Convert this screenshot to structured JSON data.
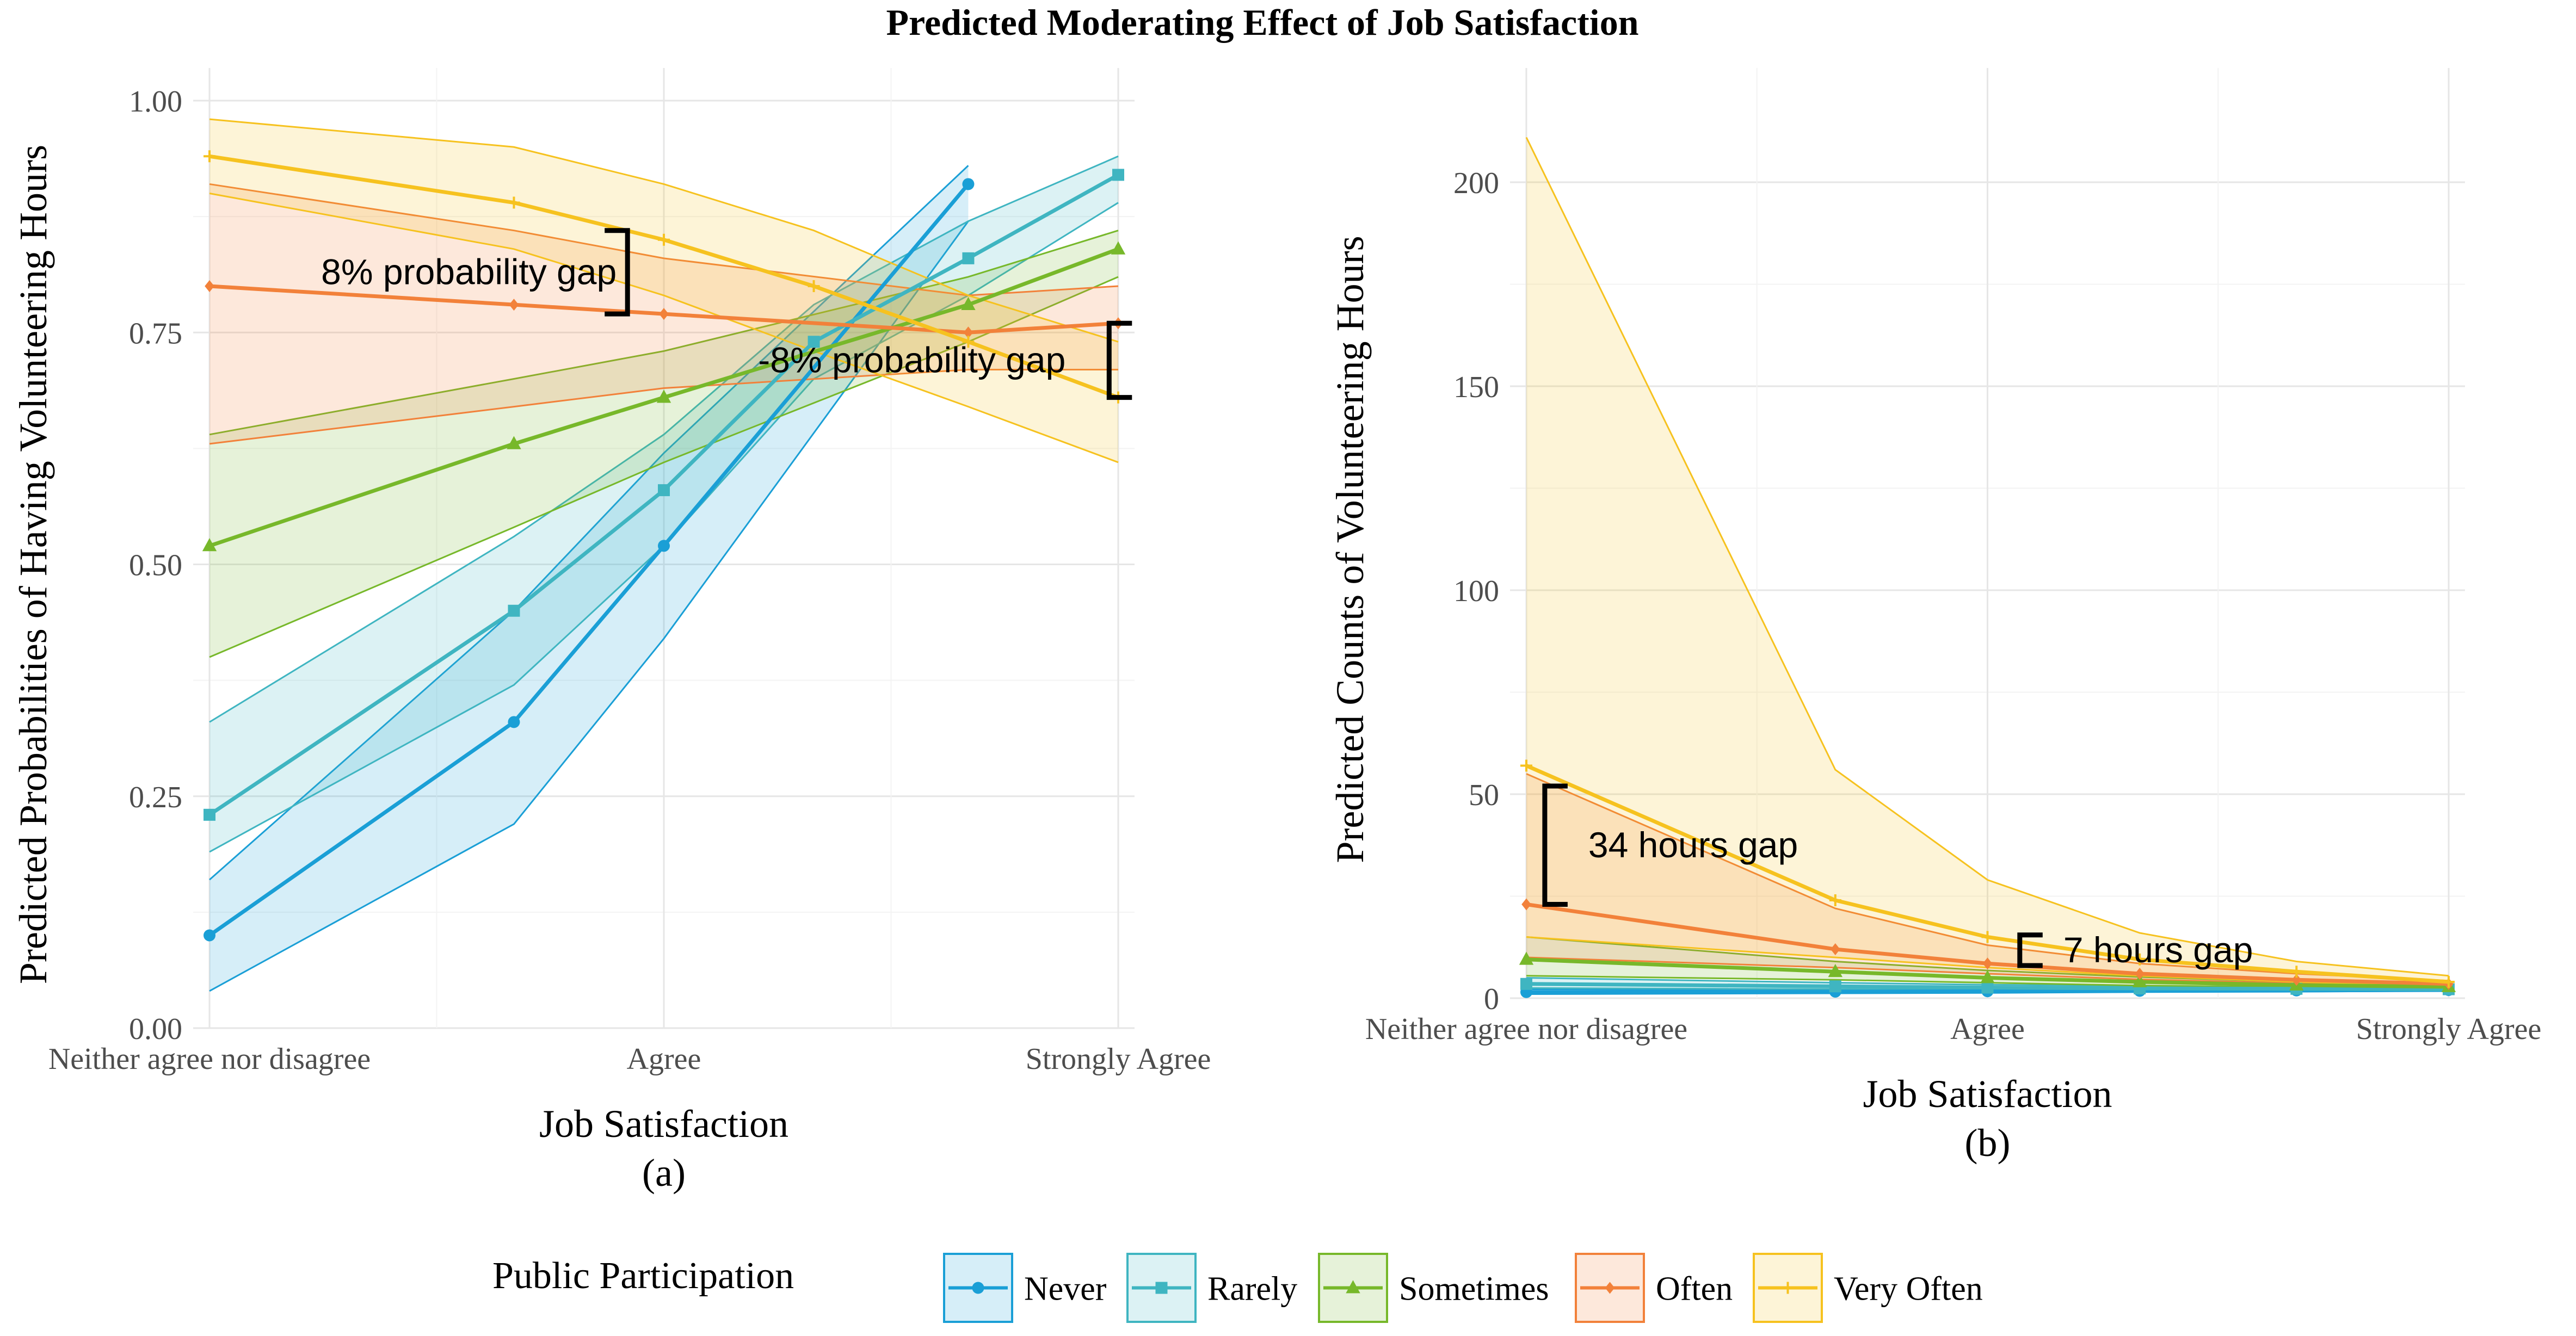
{
  "figure": {
    "title": "Predicted Moderating Effect of Job Satisfaction",
    "legend_title": "Public Participation"
  },
  "colors": {
    "Never": "#1a9fd6",
    "Rarely": "#3fb5c1",
    "Sometimes": "#77b82a",
    "Often": "#f2813a",
    "Very Often": "#f6c21f"
  },
  "chart_data": [
    {
      "type": "line",
      "panel_label": "(a)",
      "xlabel": "Job Satisfaction",
      "ylabel": "Predicted Probabilities of Having Volunteering Hours",
      "x_ticks": [
        "Neither agree nor disagree",
        "Agree",
        "Strongly Agree"
      ],
      "x_tick_positions": [
        3,
        4,
        5
      ],
      "xlim": [
        3,
        5
      ],
      "ylim": [
        0,
        1
      ],
      "y_ticks": [
        "0.00",
        "0.25",
        "0.50",
        "0.75",
        "1.00"
      ],
      "grid": true,
      "legend": "bottom",
      "series": [
        {
          "name": "Never",
          "marker": "circle",
          "points": [
            [
              3,
              0.1
            ],
            [
              3.67,
              0.33
            ],
            [
              4,
              0.52
            ],
            [
              4.67,
              0.91
            ]
          ],
          "lower": [
            [
              3,
              0.04
            ],
            [
              3.67,
              0.22
            ],
            [
              4,
              0.42
            ],
            [
              4.67,
              0.87
            ]
          ],
          "upper": [
            [
              3,
              0.16
            ],
            [
              3.67,
              0.45
            ],
            [
              4,
              0.62
            ],
            [
              4.67,
              0.93
            ]
          ]
        },
        {
          "name": "Rarely",
          "marker": "square",
          "points": [
            [
              3,
              0.23
            ],
            [
              3.67,
              0.45
            ],
            [
              4,
              0.58
            ],
            [
              4.33,
              0.74
            ],
            [
              4.67,
              0.83
            ],
            [
              5,
              0.92
            ]
          ],
          "lower": [
            [
              3,
              0.19
            ],
            [
              3.67,
              0.37
            ],
            [
              4,
              0.52
            ],
            [
              4.33,
              0.7
            ],
            [
              4.67,
              0.79
            ],
            [
              5,
              0.89
            ]
          ],
          "upper": [
            [
              3,
              0.33
            ],
            [
              3.67,
              0.53
            ],
            [
              4,
              0.64
            ],
            [
              4.33,
              0.78
            ],
            [
              4.67,
              0.87
            ],
            [
              5,
              0.94
            ]
          ]
        },
        {
          "name": "Sometimes",
          "marker": "triangle",
          "points": [
            [
              3,
              0.52
            ],
            [
              3.67,
              0.63
            ],
            [
              4,
              0.68
            ],
            [
              4.67,
              0.78
            ],
            [
              5,
              0.84
            ]
          ],
          "lower": [
            [
              3,
              0.4
            ],
            [
              3.67,
              0.54
            ],
            [
              4,
              0.61
            ],
            [
              4.67,
              0.74
            ],
            [
              5,
              0.81
            ]
          ],
          "upper": [
            [
              3,
              0.64
            ],
            [
              3.67,
              0.7
            ],
            [
              4,
              0.73
            ],
            [
              4.67,
              0.81
            ],
            [
              5,
              0.86
            ]
          ]
        },
        {
          "name": "Often",
          "marker": "diamond",
          "points": [
            [
              3,
              0.8
            ],
            [
              3.67,
              0.78
            ],
            [
              4,
              0.77
            ],
            [
              4.67,
              0.75
            ],
            [
              5,
              0.76
            ]
          ],
          "lower": [
            [
              3,
              0.63
            ],
            [
              3.67,
              0.67
            ],
            [
              4,
              0.69
            ],
            [
              4.67,
              0.71
            ],
            [
              5,
              0.71
            ]
          ],
          "upper": [
            [
              3,
              0.91
            ],
            [
              3.67,
              0.86
            ],
            [
              4,
              0.83
            ],
            [
              4.67,
              0.79
            ],
            [
              5,
              0.8
            ]
          ]
        },
        {
          "name": "Very Often",
          "marker": "plus",
          "points": [
            [
              3,
              0.94
            ],
            [
              3.67,
              0.89
            ],
            [
              4,
              0.85
            ],
            [
              4.33,
              0.8
            ],
            [
              4.67,
              0.74
            ],
            [
              5,
              0.68
            ]
          ],
          "lower": [
            [
              3,
              0.9
            ],
            [
              3.67,
              0.84
            ],
            [
              4,
              0.79
            ],
            [
              4.33,
              0.73
            ],
            [
              4.67,
              0.67
            ],
            [
              5,
              0.61
            ]
          ],
          "upper": [
            [
              3,
              0.98
            ],
            [
              3.67,
              0.95
            ],
            [
              4,
              0.91
            ],
            [
              4.33,
              0.86
            ],
            [
              4.67,
              0.79
            ],
            [
              5,
              0.74
            ]
          ]
        }
      ],
      "annotations": [
        {
          "text": "8% probability gap",
          "x": 3.92,
          "y_top": 0.86,
          "y_bottom": 0.77,
          "open": "left"
        },
        {
          "text": "-8% probability gap",
          "x": 4.98,
          "y_top": 0.76,
          "y_bottom": 0.68,
          "open": "right"
        }
      ]
    },
    {
      "type": "line",
      "panel_label": "(b)",
      "xlabel": "Job Satisfaction",
      "ylabel": "Predicted Counts of Volunteering Hours",
      "x_ticks": [
        "Neither agree nor disagree",
        "Agree",
        "Strongly Agree"
      ],
      "x_tick_positions": [
        3,
        4,
        5
      ],
      "xlim": [
        3,
        5
      ],
      "ylim": [
        0,
        220
      ],
      "y_ticks": [
        "0",
        "50",
        "100",
        "150",
        "200"
      ],
      "grid": true,
      "legend": "bottom",
      "series": [
        {
          "name": "Never",
          "marker": "circle",
          "points": [
            [
              3,
              1.5
            ],
            [
              3.67,
              1.6
            ],
            [
              4,
              1.7
            ],
            [
              4.33,
              1.8
            ],
            [
              4.67,
              1.9
            ],
            [
              5,
              2.0
            ]
          ],
          "lower": [
            [
              3,
              1.0
            ],
            [
              3.67,
              1.2
            ],
            [
              4,
              1.3
            ],
            [
              4.33,
              1.5
            ],
            [
              4.67,
              1.6
            ],
            [
              5,
              1.8
            ]
          ],
          "upper": [
            [
              3,
              2.2
            ],
            [
              3.67,
              2.1
            ],
            [
              4,
              2.2
            ],
            [
              4.33,
              2.2
            ],
            [
              4.67,
              2.2
            ],
            [
              5,
              2.3
            ]
          ]
        },
        {
          "name": "Rarely",
          "marker": "square",
          "points": [
            [
              3,
              3.5
            ],
            [
              3.67,
              2.9
            ],
            [
              4,
              2.6
            ],
            [
              4.33,
              2.4
            ],
            [
              4.67,
              2.3
            ],
            [
              5,
              2.2
            ]
          ],
          "lower": [
            [
              3,
              2.5
            ],
            [
              3.67,
              2.2
            ],
            [
              4,
              2.1
            ],
            [
              4.33,
              2.0
            ],
            [
              4.67,
              2.0
            ],
            [
              5,
              2.0
            ]
          ],
          "upper": [
            [
              3,
              5.0
            ],
            [
              3.67,
              3.8
            ],
            [
              4,
              3.3
            ],
            [
              4.33,
              3.0
            ],
            [
              4.67,
              2.8
            ],
            [
              5,
              2.6
            ]
          ]
        },
        {
          "name": "Sometimes",
          "marker": "triangle",
          "points": [
            [
              3,
              9.5
            ],
            [
              3.67,
              6.5
            ],
            [
              4,
              5.0
            ],
            [
              4.33,
              4.0
            ],
            [
              4.67,
              3.2
            ],
            [
              5,
              2.8
            ]
          ],
          "lower": [
            [
              3,
              5.5
            ],
            [
              3.67,
              4.5
            ],
            [
              4,
              3.8
            ],
            [
              4.33,
              3.1
            ],
            [
              4.67,
              2.7
            ],
            [
              5,
              2.4
            ]
          ],
          "upper": [
            [
              3,
              15
            ],
            [
              3.67,
              9.0
            ],
            [
              4,
              6.8
            ],
            [
              4.33,
              5.2
            ],
            [
              4.67,
              4.0
            ],
            [
              5,
              3.3
            ]
          ]
        },
        {
          "name": "Often",
          "marker": "diamond",
          "points": [
            [
              3,
              23
            ],
            [
              3.67,
              12
            ],
            [
              4,
              8.5
            ],
            [
              4.33,
              6.0
            ],
            [
              4.67,
              4.5
            ],
            [
              5,
              3.5
            ]
          ],
          "lower": [
            [
              3,
              10
            ],
            [
              3.67,
              7.5
            ],
            [
              4,
              6.0
            ],
            [
              4.33,
              4.6
            ],
            [
              4.67,
              3.7
            ],
            [
              5,
              3.0
            ]
          ],
          "upper": [
            [
              3,
              55
            ],
            [
              3.67,
              22
            ],
            [
              4,
              13
            ],
            [
              4.33,
              8.5
            ],
            [
              4.67,
              6.0
            ],
            [
              5,
              4.3
            ]
          ]
        },
        {
          "name": "Very Often",
          "marker": "plus",
          "points": [
            [
              3,
              57
            ],
            [
              3.67,
              24
            ],
            [
              4,
              15
            ],
            [
              4.33,
              9.5
            ],
            [
              4.67,
              6.5
            ],
            [
              5,
              4.0
            ]
          ],
          "lower": [
            [
              3,
              15
            ],
            [
              3.67,
              10
            ],
            [
              4,
              7.5
            ],
            [
              4.33,
              5.5
            ],
            [
              4.67,
              4.0
            ],
            [
              5,
              3.0
            ]
          ],
          "upper": [
            [
              3,
              211
            ],
            [
              3.67,
              56
            ],
            [
              4,
              29
            ],
            [
              4.33,
              16
            ],
            [
              4.67,
              9.0
            ],
            [
              5,
              5.5
            ]
          ]
        }
      ],
      "annotations": [
        {
          "text": "34 hours gap",
          "x": 3.04,
          "y_top": 52,
          "y_bottom": 23,
          "open": "right"
        },
        {
          "text": "7 hours gap",
          "x": 4.07,
          "y_top": 15.5,
          "y_bottom": 8,
          "open": "right"
        }
      ]
    }
  ]
}
